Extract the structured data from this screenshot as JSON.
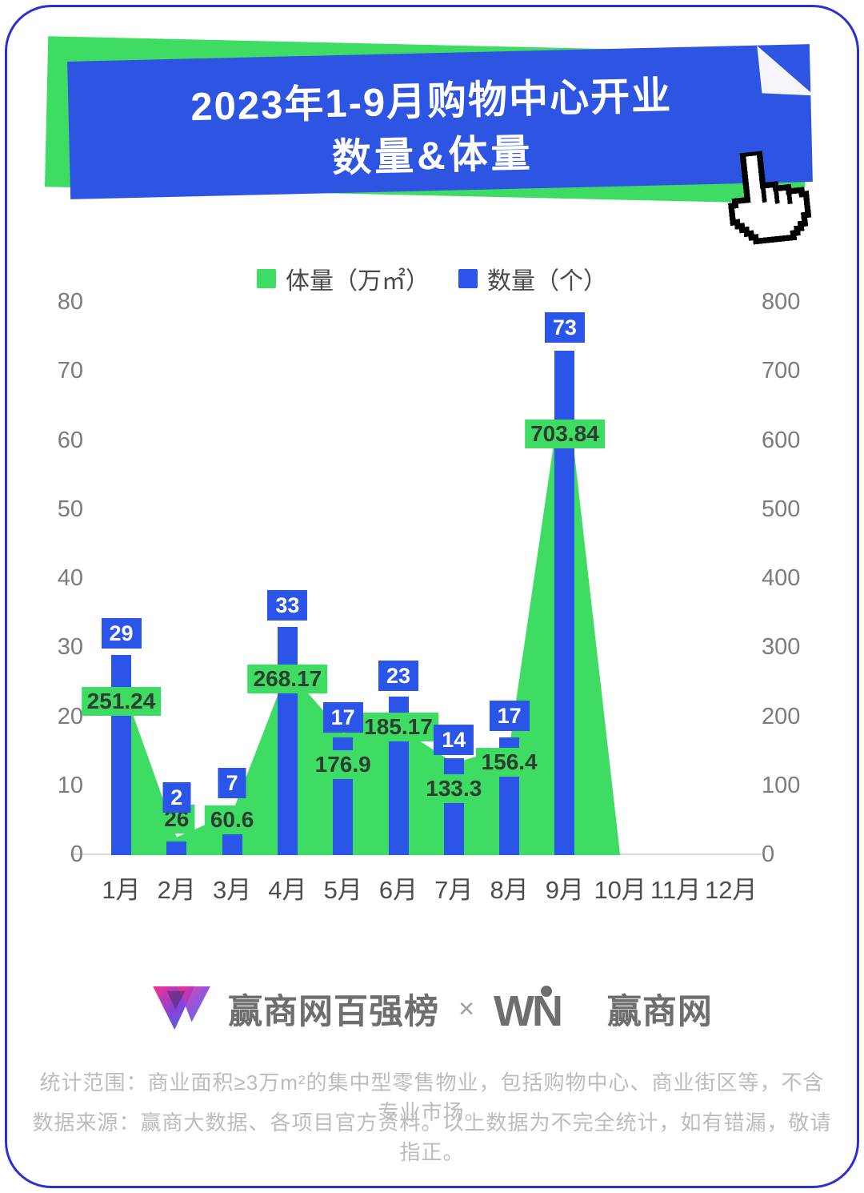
{
  "banner": {
    "title_line1": "2023年1-9月购物中心开业",
    "title_line2": "数量&体量",
    "blue": "#2e54e2",
    "green": "#3edc63"
  },
  "legend": [
    {
      "label": "体量（万㎡）",
      "color": "#3edc63"
    },
    {
      "label": "数量（个）",
      "color": "#2b55e8"
    }
  ],
  "chart_data": {
    "type": "combo_area_bar",
    "categories": [
      "1月",
      "2月",
      "3月",
      "4月",
      "5月",
      "6月",
      "7月",
      "8月",
      "9月",
      "10月",
      "11月",
      "12月"
    ],
    "series": [
      {
        "name": "体量（万㎡）",
        "type": "area",
        "axis": "right",
        "color": "#3edc63",
        "values": [
          251.24,
          26,
          60.6,
          268.17,
          176.9,
          185.17,
          133.3,
          156.4,
          703.84
        ]
      },
      {
        "name": "数量（个）",
        "type": "bar",
        "axis": "left",
        "color": "#2b55e8",
        "values": [
          29,
          2,
          7,
          33,
          17,
          23,
          14,
          17,
          73
        ]
      }
    ],
    "title": "2023年1-9月购物中心开业数量&体量",
    "xlabel": "",
    "ylabel_left": "",
    "ylabel_right": "",
    "left_axis": {
      "range": [
        0,
        80
      ],
      "ticks": [
        0,
        10,
        20,
        30,
        40,
        50,
        60,
        70,
        80
      ]
    },
    "right_axis": {
      "range": [
        0,
        800
      ],
      "ticks": [
        0,
        100,
        200,
        300,
        400,
        500,
        600,
        700,
        800
      ]
    },
    "grid": false,
    "legend_position": "top"
  },
  "footer": {
    "logo_left_text": "赢商网百强榜",
    "separator": "×",
    "win_mark": "WN",
    "logo_right_text": "赢商网"
  },
  "disclaimer": {
    "line1": "统计范围：商业面积≥3万m²的集中型零售物业，包括购物中心、商业街区等，不含专业市场。",
    "line2": "数据来源：赢商大数据、各项目官方资料。以上数据为不完全统计，如有错漏，敬请指正。"
  },
  "colors": {
    "page_border": "#2b2fd6",
    "axis_text": "#7b7b7b",
    "x_axis_text": "#4d4d4d",
    "volume_label_text": "#2e3d31",
    "count_label_text": "#ffffff",
    "disclaimer_text": "#bcbcbc",
    "logo_gray": "#6e6e6e"
  }
}
